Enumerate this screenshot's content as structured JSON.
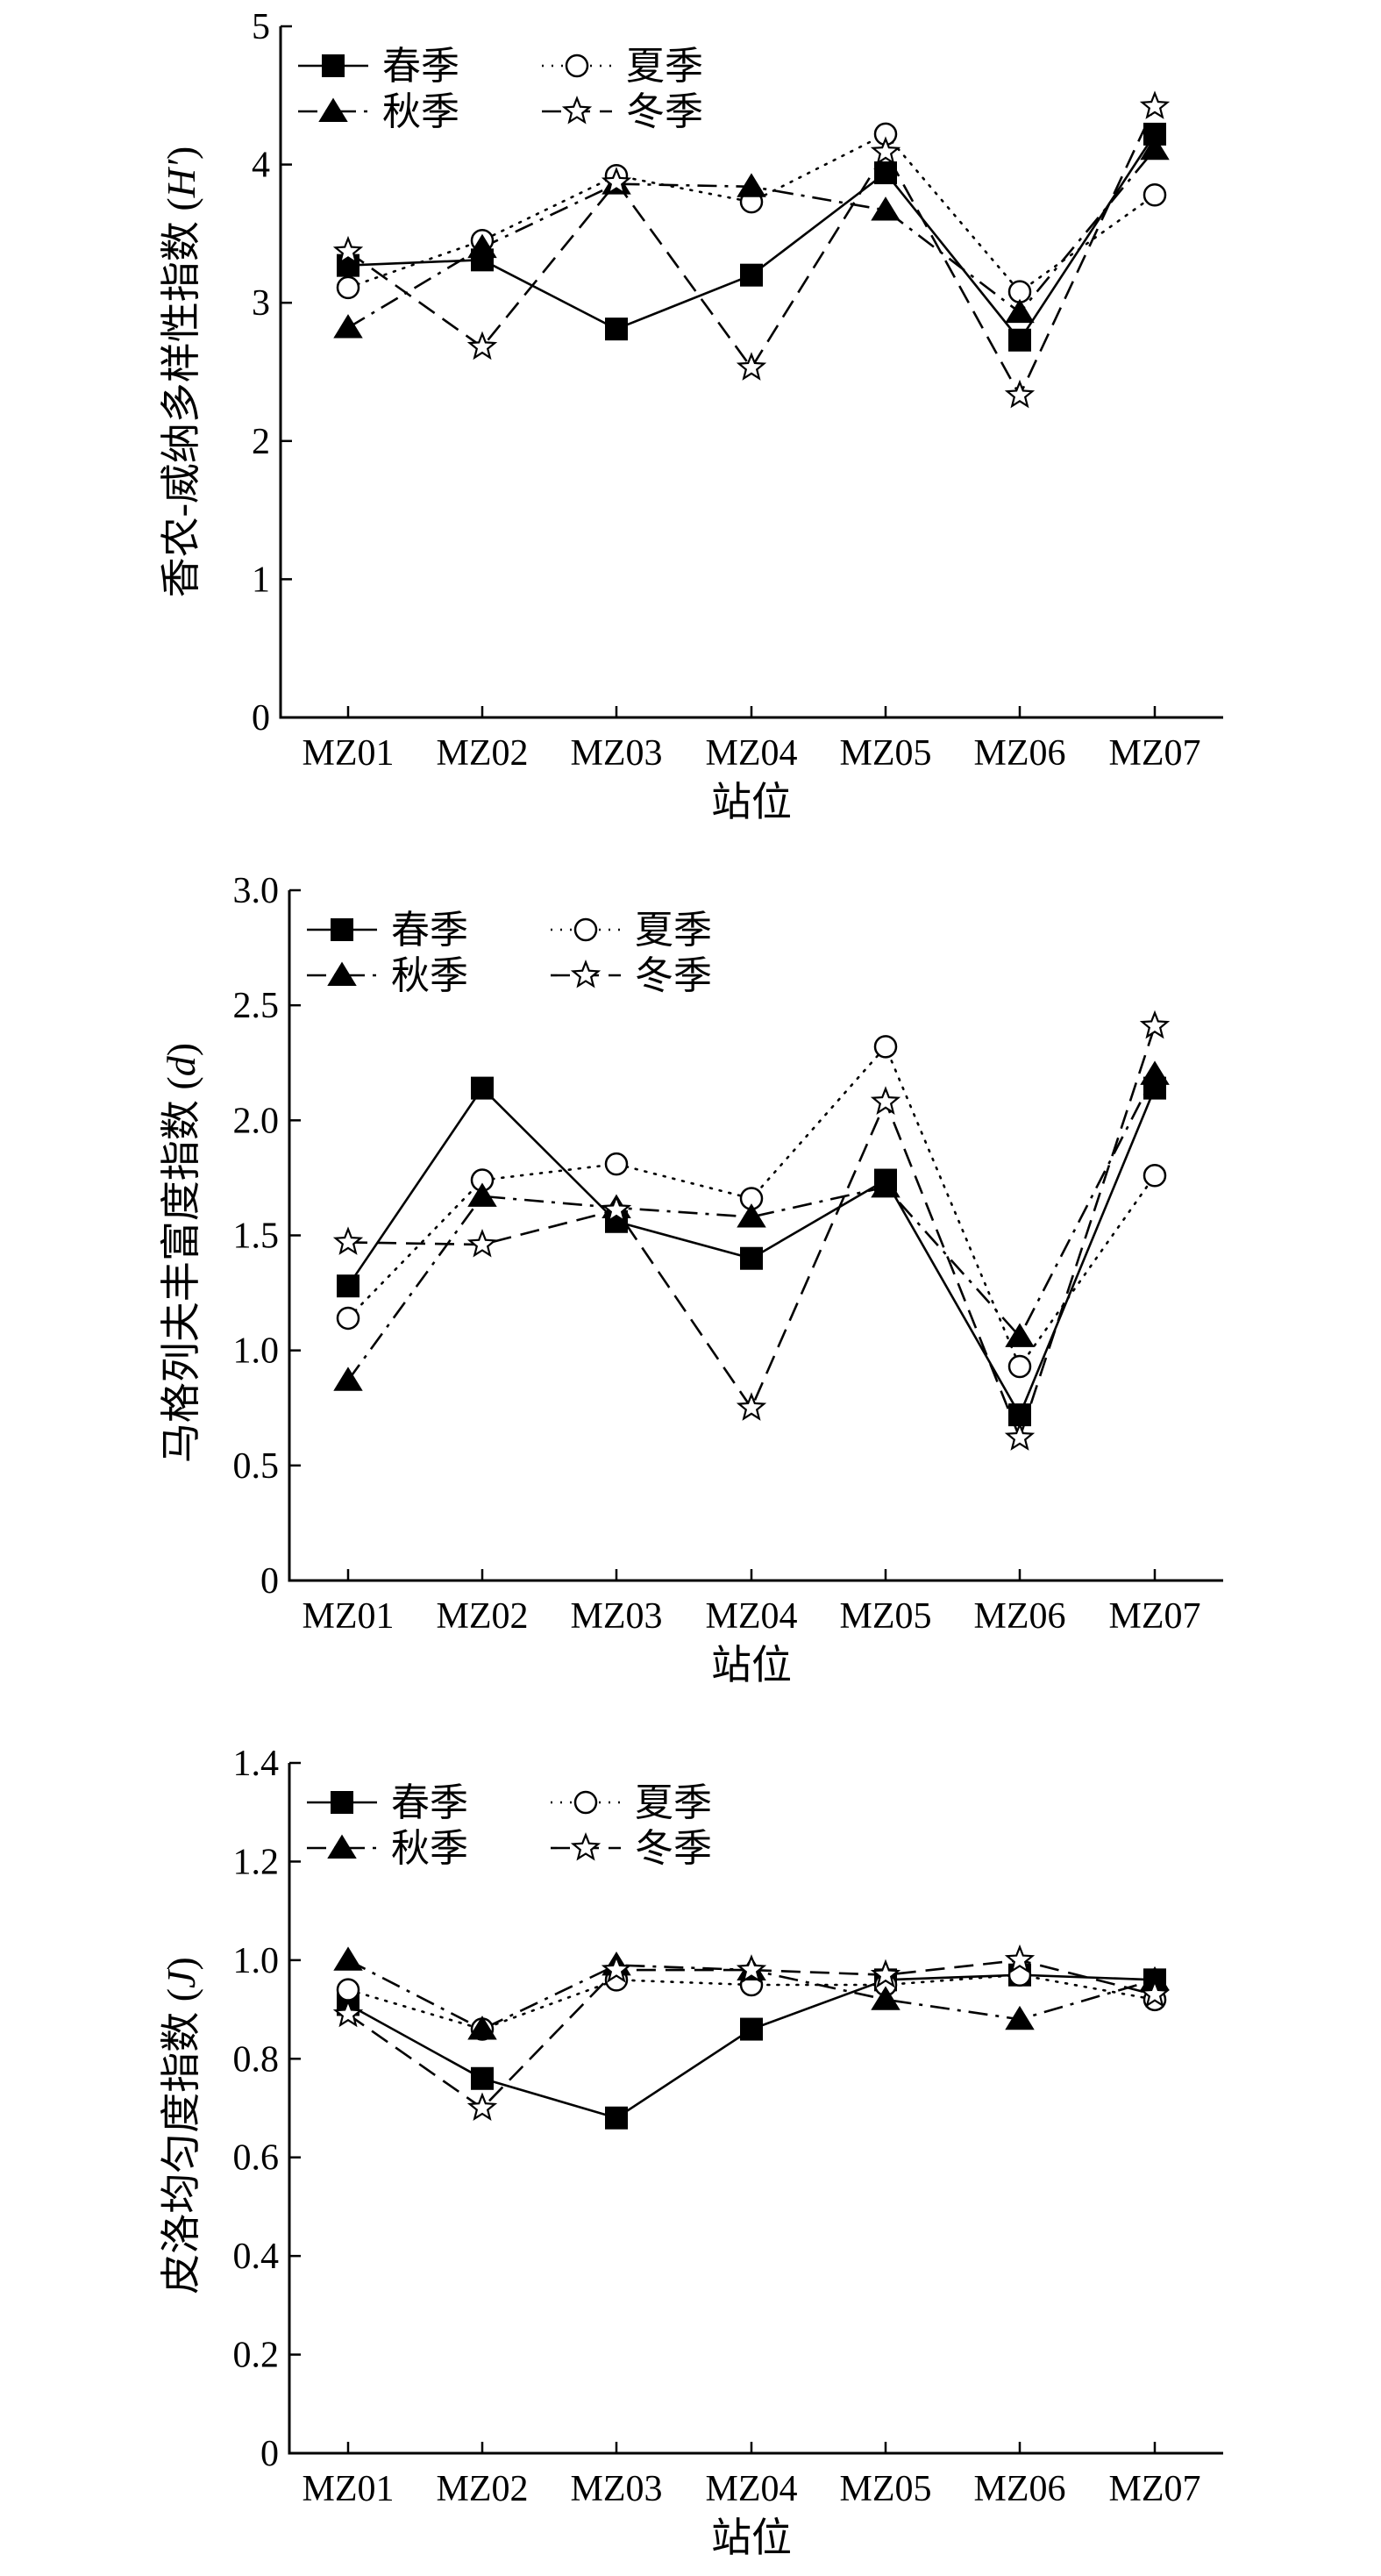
{
  "chart_data": [
    {
      "type": "line",
      "categories": [
        "MZ01",
        "MZ02",
        "MZ03",
        "MZ04",
        "MZ05",
        "MZ06",
        "MZ07"
      ],
      "xlabel": "站位",
      "ylabel": "香农-威纳多样性指数",
      "ylabel_symbol": "H′",
      "ylim": [
        0,
        5
      ],
      "yticks": [
        "0",
        "1",
        "2",
        "3",
        "4",
        "5"
      ],
      "grid": false,
      "legend": "top-left",
      "series": [
        {
          "name": "春季",
          "marker": "square-filled",
          "dash": "solid",
          "values": [
            3.27,
            3.31,
            2.81,
            3.2,
            3.94,
            2.73,
            4.22
          ]
        },
        {
          "name": "夏季",
          "marker": "circle-open",
          "dash": "dotted",
          "values": [
            3.11,
            3.45,
            3.92,
            3.73,
            4.22,
            3.08,
            3.78
          ]
        },
        {
          "name": "秋季",
          "marker": "triangle-filled",
          "dash": "dashdot",
          "values": [
            2.82,
            3.4,
            3.86,
            3.84,
            3.67,
            2.93,
            4.11
          ]
        },
        {
          "name": "冬季",
          "marker": "star-open",
          "dash": "dashed",
          "values": [
            3.37,
            2.68,
            3.87,
            2.53,
            4.09,
            2.33,
            4.42
          ]
        }
      ]
    },
    {
      "type": "line",
      "categories": [
        "MZ01",
        "MZ02",
        "MZ03",
        "MZ04",
        "MZ05",
        "MZ06",
        "MZ07"
      ],
      "xlabel": "站位",
      "ylabel": "马格列夫丰富度指数",
      "ylabel_symbol": "d",
      "ylim": [
        0,
        3
      ],
      "yticks": [
        "0",
        "0.5",
        "1.0",
        "1.5",
        "2.0",
        "2.5",
        "3.0"
      ],
      "grid": false,
      "legend": "top-left",
      "series": [
        {
          "name": "春季",
          "marker": "square-filled",
          "dash": "solid",
          "values": [
            1.28,
            2.14,
            1.56,
            1.4,
            1.74,
            0.72,
            2.14
          ]
        },
        {
          "name": "夏季",
          "marker": "circle-open",
          "dash": "dotted",
          "values": [
            1.14,
            1.74,
            1.81,
            1.66,
            2.32,
            0.93,
            1.76
          ]
        },
        {
          "name": "秋季",
          "marker": "triangle-filled",
          "dash": "dashdot",
          "values": [
            0.87,
            1.67,
            1.62,
            1.58,
            1.71,
            1.06,
            2.2
          ]
        },
        {
          "name": "冬季",
          "marker": "star-open",
          "dash": "dashed",
          "values": [
            1.47,
            1.46,
            1.61,
            0.75,
            2.08,
            0.62,
            2.41
          ]
        }
      ]
    },
    {
      "type": "line",
      "categories": [
        "MZ01",
        "MZ02",
        "MZ03",
        "MZ04",
        "MZ05",
        "MZ06",
        "MZ07"
      ],
      "xlabel": "站位",
      "ylabel": "皮洛均匀度指数",
      "ylabel_symbol": "J",
      "ylim": [
        0,
        1.4
      ],
      "yticks": [
        "0",
        "0.2",
        "0.4",
        "0.6",
        "0.8",
        "1.0",
        "1.2",
        "1.4"
      ],
      "grid": false,
      "legend": "top-left",
      "series": [
        {
          "name": "春季",
          "marker": "square-filled",
          "dash": "solid",
          "values": [
            0.91,
            0.76,
            0.68,
            0.86,
            0.96,
            0.97,
            0.96
          ]
        },
        {
          "name": "夏季",
          "marker": "circle-open",
          "dash": "dotted",
          "values": [
            0.94,
            0.86,
            0.96,
            0.95,
            0.95,
            0.97,
            0.92
          ]
        },
        {
          "name": "秋季",
          "marker": "triangle-filled",
          "dash": "dashdot",
          "values": [
            1.0,
            0.86,
            0.99,
            0.98,
            0.92,
            0.88,
            0.96
          ]
        },
        {
          "name": "冬季",
          "marker": "star-open",
          "dash": "dashed",
          "values": [
            0.89,
            0.7,
            0.98,
            0.98,
            0.97,
            1.0,
            0.93
          ]
        }
      ]
    }
  ]
}
